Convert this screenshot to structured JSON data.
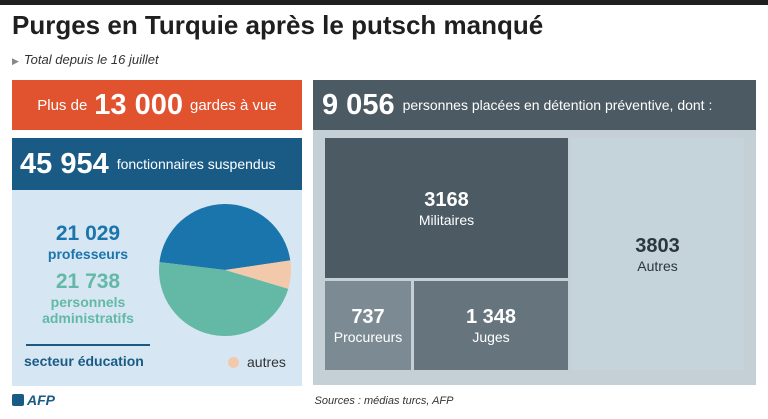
{
  "title": "Purges en Turquie après le putsch manqué",
  "subtitle": "Total depuis le 16 juillet",
  "custody": {
    "prefix": "Plus de",
    "value": "13 000",
    "suffix": "gardes à vue"
  },
  "suspended": {
    "value": "45 954",
    "label": "fonctionnaires suspendus",
    "teachers": {
      "value": "21 029",
      "label": "professeurs"
    },
    "admin": {
      "value": "21 738",
      "label_line1": "personnels",
      "label_line2": "administratifs"
    },
    "sector_label": "secteur éducation",
    "legend_other": "autres"
  },
  "detention": {
    "value": "9 056",
    "label": "personnes placées en détention préventive, dont :"
  },
  "colors": {
    "red": "#e1532f",
    "blue_dark": "#1a5b86",
    "blue_light": "#d6e6f3",
    "teachers": "#1b75ad",
    "admin": "#63b9a6",
    "other": "#f3c9ab",
    "gray_head": "#4b5a63",
    "gray_panel": "#c5d0d6"
  },
  "chart_data": [
    {
      "type": "pie",
      "title": "45 954 fonctionnaires suspendus",
      "total": 45954,
      "slices": [
        {
          "name": "professeurs",
          "value": 21029,
          "color": "#1b75ad"
        },
        {
          "name": "personnels administratifs",
          "value": 21738,
          "color": "#63b9a6"
        },
        {
          "name": "autres",
          "value": 3187,
          "color": "#f3c9ab"
        }
      ]
    },
    {
      "type": "treemap",
      "title": "9 056 personnes placées en détention préventive, dont :",
      "total": 9056,
      "items": [
        {
          "value_label": "3168",
          "label": "Militaires",
          "value": 3168,
          "color": "#4b5a63"
        },
        {
          "value_label": "737",
          "label": "Procureurs",
          "value": 737,
          "color": "#7c8b93"
        },
        {
          "value_label": "1 348",
          "label": "Juges",
          "value": 1348,
          "color": "#66757d"
        },
        {
          "value_label": "3803",
          "label": "Autres",
          "value": 3803,
          "color": "#c5d3da"
        }
      ]
    }
  ],
  "footer": {
    "logo": "AFP",
    "sources": "Sources : médias turcs, AFP"
  }
}
